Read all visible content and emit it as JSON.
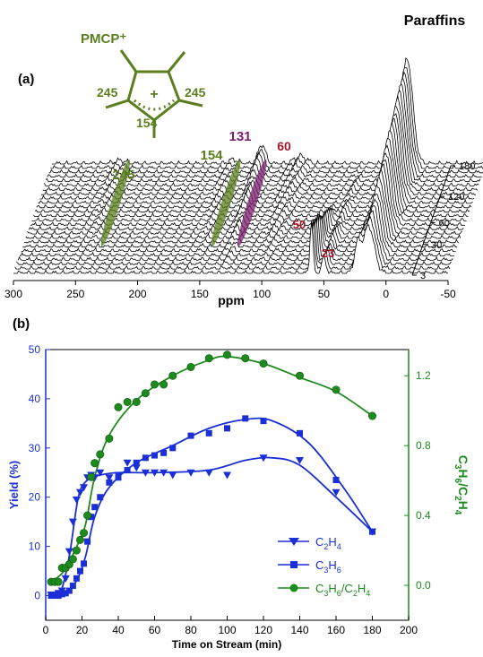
{
  "colors": {
    "olive": "#5b7f1e",
    "purple": "#7a1e6e",
    "red": "#a8162b",
    "blue": "#1a2fd6",
    "green": "#1d8a1d",
    "black": "#000000"
  },
  "chart_data": [
    {
      "type": "line",
      "panel_label": "(a)",
      "xlabel": "ppm",
      "xlim": [
        300,
        -50
      ],
      "xticks": [
        "300",
        "250",
        "200",
        "150",
        "100",
        "50",
        "0",
        "-50"
      ],
      "depth_ticks": [
        "180",
        "120",
        "60",
        "30",
        "3"
      ],
      "spectra_count": 26,
      "peaks_ppm": [
        {
          "ppm": 245,
          "label": "245",
          "color": "olive"
        },
        {
          "ppm": 154,
          "label": "154",
          "color": "olive"
        },
        {
          "ppm": 131,
          "label": "131",
          "color": "purple"
        },
        {
          "ppm": 60,
          "label": "60",
          "color": "red"
        },
        {
          "ppm": 50,
          "label": "50",
          "color": "red"
        },
        {
          "ppm": 23,
          "label": "23",
          "color": "red"
        },
        {
          "ppm": 14,
          "label": "Paraffins",
          "color": "black"
        }
      ],
      "structure": {
        "title": "PMCP⁺",
        "labels": [
          "245",
          "245",
          "154",
          "+"
        ]
      }
    },
    {
      "type": "scatter",
      "panel_label": "(b)",
      "xlabel": "Time on Stream (min)",
      "ylabel": "Yield (%)",
      "y2label": "C3H6/C2H4",
      "xlim": [
        0,
        200
      ],
      "ylim": [
        -5,
        50
      ],
      "y2lim": [
        -0.2,
        1.35
      ],
      "xticks": [
        0,
        20,
        40,
        60,
        80,
        100,
        120,
        140,
        160,
        180,
        200
      ],
      "yticks": [
        0,
        10,
        20,
        30,
        40,
        50
      ],
      "y2ticks": [
        "0.0",
        "0.4",
        "0.8",
        "1.2"
      ],
      "series": [
        {
          "name": "C₂H₄",
          "marker": "triangle-down",
          "color": "blue",
          "axis": "left",
          "x": [
            3,
            5,
            7,
            9,
            11,
            13,
            15,
            17,
            19,
            21,
            23,
            25,
            27,
            30,
            35,
            40,
            45,
            50,
            55,
            60,
            65,
            70,
            80,
            90,
            100,
            120,
            140,
            160,
            180
          ],
          "y": [
            0.2,
            0.2,
            0.5,
            1,
            3.5,
            9,
            15,
            19.5,
            21,
            22,
            24,
            24.5,
            24,
            25,
            24,
            24.5,
            27,
            26,
            25,
            25,
            25,
            24.5,
            25,
            25,
            24.5,
            28,
            27.5,
            21,
            13
          ]
        },
        {
          "name": "C₃H₆",
          "marker": "square",
          "color": "blue",
          "axis": "left",
          "x": [
            3,
            5,
            7,
            9,
            11,
            13,
            15,
            17,
            19,
            21,
            23,
            25,
            27,
            30,
            35,
            40,
            45,
            50,
            55,
            60,
            65,
            70,
            80,
            90,
            100,
            110,
            120,
            140,
            160,
            180
          ],
          "y": [
            0,
            0,
            0,
            0.3,
            0.5,
            1,
            2,
            3.5,
            5,
            6.5,
            11,
            16,
            18,
            20,
            23,
            24,
            25.5,
            27,
            28,
            28.5,
            29,
            30,
            32.5,
            33,
            34,
            36,
            35.5,
            33,
            23.5,
            13
          ]
        },
        {
          "name": "C₃H₆/C₂H₄",
          "marker": "circle",
          "color": "green",
          "axis": "right",
          "x": [
            3,
            5,
            7,
            9,
            11,
            13,
            15,
            17,
            19,
            21,
            23,
            25,
            27,
            30,
            35,
            40,
            45,
            50,
            55,
            60,
            65,
            70,
            80,
            90,
            100,
            110,
            120,
            140,
            160,
            180
          ],
          "y": [
            0.02,
            0.02,
            0.02,
            0.1,
            0.1,
            0.12,
            0.15,
            0.2,
            0.26,
            0.3,
            0.4,
            0.62,
            0.7,
            0.75,
            0.84,
            1.02,
            1.05,
            1.05,
            1.1,
            1.15,
            1.15,
            1.2,
            1.25,
            1.3,
            1.32,
            1.3,
            1.27,
            1.2,
            1.12,
            0.97
          ]
        }
      ],
      "legend": {
        "placement": "bottom-right",
        "entries": [
          {
            "main": "C",
            "sub1": "2",
            "mid": "H",
            "sub2": "4",
            "tail": "",
            "sub3": "",
            "tail2": "",
            "sub4": ""
          },
          {
            "main": "C",
            "sub1": "3",
            "mid": "H",
            "sub2": "6",
            "tail": "",
            "sub3": "",
            "tail2": "",
            "sub4": ""
          },
          {
            "main": "C",
            "sub1": "3",
            "mid": "H",
            "sub2": "6",
            "tail": "/C",
            "sub3": "2",
            "tail2": "H",
            "sub4": "4"
          }
        ]
      }
    }
  ]
}
